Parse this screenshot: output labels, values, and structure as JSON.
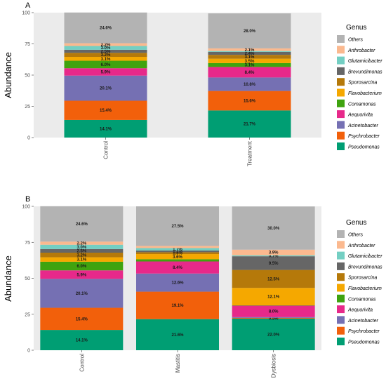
{
  "chart_data": [
    {
      "panel": "A",
      "type": "bar",
      "stacked": true,
      "ylabel": "Abundance",
      "ylim": [
        0,
        100
      ],
      "yticks": [
        "0",
        "25",
        "50",
        "75",
        "100"
      ],
      "categories": [
        "Control",
        "Treatment"
      ],
      "series": [
        {
          "name": "Pseudomonas",
          "values": [
            14.1,
            21.7
          ],
          "labels": [
            "14.1%",
            "21.7%"
          ]
        },
        {
          "name": "Psychrobacter",
          "values": [
            15.4,
            15.6
          ],
          "labels": [
            "15.4%",
            "15.6%"
          ]
        },
        {
          "name": "Acinetobacter",
          "values": [
            20.1,
            10.8
          ],
          "labels": [
            "20.1%",
            "10.8%"
          ]
        },
        {
          "name": "Aequorivita",
          "values": [
            5.9,
            8.4
          ],
          "labels": [
            "5.9%",
            "8.4%"
          ]
        },
        {
          "name": "Comamonas",
          "values": [
            6.0,
            3.1
          ],
          "labels": [
            "6.0%",
            "3.1%"
          ]
        },
        {
          "name": "Flavobacterium",
          "values": [
            3.1,
            3.5
          ],
          "labels": [
            "3.1%",
            "3.5%"
          ]
        },
        {
          "name": "Sporosarcina",
          "values": [
            3.2,
            3.1
          ],
          "labels": [
            "3.2%",
            "3.1%"
          ]
        },
        {
          "name": "Brevundimonas",
          "values": [
            2.5,
            2.4
          ],
          "labels": [
            "2.5%",
            "2.4%"
          ]
        },
        {
          "name": "Glutamicibacter",
          "values": [
            3.0,
            0.7
          ],
          "labels": [
            "3.0%",
            ""
          ]
        },
        {
          "name": "Arthrobacter",
          "values": [
            2.2,
            2.1
          ],
          "labels": [
            "2.2%",
            "2.1%"
          ]
        },
        {
          "name": "Others",
          "values": [
            24.6,
            28.0
          ],
          "labels": [
            "24.6%",
            "28.0%"
          ]
        }
      ],
      "legend_title": "Genus",
      "legend_placement": "right"
    },
    {
      "panel": "B",
      "type": "bar",
      "stacked": true,
      "ylabel": "Abundance",
      "ylim": [
        0,
        100
      ],
      "yticks": [
        "0",
        "25",
        "50",
        "75",
        "100"
      ],
      "categories": [
        "Control",
        "Mastitis",
        "Dysbiosis"
      ],
      "series": [
        {
          "name": "Pseudomonas",
          "values": [
            14.1,
            21.6,
            22.0
          ],
          "labels": [
            "14.1%",
            "21.6%",
            "22.0%"
          ]
        },
        {
          "name": "Psychrobacter",
          "values": [
            15.4,
            19.1,
            0.5
          ],
          "labels": [
            "15.4%",
            "19.1%",
            "0.5%"
          ]
        },
        {
          "name": "Acinetobacter",
          "values": [
            20.1,
            12.6,
            0.5
          ],
          "labels": [
            "20.1%",
            "12.6%",
            ""
          ]
        },
        {
          "name": "Aequorivita",
          "values": [
            5.9,
            8.4,
            8.0
          ],
          "labels": [
            "5.9%",
            "8.4%",
            "8.0%"
          ]
        },
        {
          "name": "Comamonas",
          "values": [
            6.0,
            1.5,
            0.2
          ],
          "labels": [
            "6.0%",
            "",
            ""
          ]
        },
        {
          "name": "Flavobacterium",
          "values": [
            3.1,
            3.6,
            12.1
          ],
          "labels": [
            "3.1%",
            "3.6%",
            "12.1%"
          ]
        },
        {
          "name": "Sporosarcina",
          "values": [
            3.2,
            1.3,
            12.5
          ],
          "labels": [
            "3.2%",
            "1.3%",
            "12.5%"
          ]
        },
        {
          "name": "Brevundimonas",
          "values": [
            2.5,
            1.2,
            9.5
          ],
          "labels": [
            "2.5%",
            "1.2%",
            "9.5%"
          ]
        },
        {
          "name": "Glutamicibacter",
          "values": [
            3.0,
            1.7,
            0.7
          ],
          "labels": [
            "3.0%",
            "1.7%",
            "0.7%"
          ]
        },
        {
          "name": "Arthrobacter",
          "values": [
            2.2,
            1.5,
            3.9
          ],
          "labels": [
            "2.2%",
            "",
            "3.9%"
          ]
        },
        {
          "name": "Others",
          "values": [
            24.6,
            27.5,
            30.0
          ],
          "labels": [
            "24.6%",
            "27.5%",
            "30.0%"
          ]
        }
      ],
      "legend_title": "Genus",
      "legend_placement": "right"
    }
  ],
  "colors": {
    "Pseudomonas": "#009E73",
    "Psychrobacter": "#F2600B",
    "Acinetobacter": "#7570B3",
    "Aequorivita": "#E7298A",
    "Comamonas": "#3FA30F",
    "Flavobacterium": "#F5A800",
    "Sporosarcina": "#B5790A",
    "Brevundimonas": "#666666",
    "Glutamicibacter": "#74CFC3",
    "Arthrobacter": "#FBB98F",
    "Others": "#B3B3B3",
    "panel_background": "#EBEBEB"
  },
  "legend_order": [
    "Others",
    "Arthrobacter",
    "Glutamicibacter",
    "Brevundimonas",
    "Sporosarcina",
    "Flavobacterium",
    "Comamonas",
    "Aequorivita",
    "Acinetobacter",
    "Psychrobacter",
    "Pseudomonas"
  ]
}
